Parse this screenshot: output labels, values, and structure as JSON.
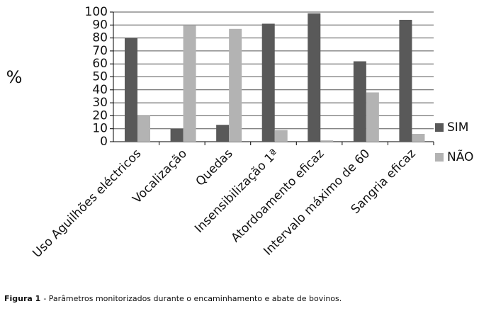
{
  "chart_data": {
    "type": "bar",
    "y_label": "%",
    "categories": [
      "Uso Aguilhões eléctricos",
      "Vocalização",
      "Quedas",
      "Insensibilização 1ª",
      "Atordoamento eficaz",
      "Intervalo máximo de 60",
      "Sangria eficaz"
    ],
    "series": [
      {
        "name": "SIM",
        "color": "#595959",
        "values": [
          80,
          10,
          13,
          91,
          99,
          62,
          94
        ]
      },
      {
        "name": "NÃO",
        "color": "#b3b3b3",
        "values": [
          20,
          90,
          87,
          9,
          1,
          38,
          6
        ]
      }
    ],
    "ylim": [
      0,
      100
    ],
    "yticks": [
      0,
      10,
      20,
      30,
      40,
      50,
      60,
      70,
      80,
      90,
      100
    ],
    "grid": true,
    "legend": "right"
  },
  "caption": {
    "label": "Figura 1",
    "text": "- Parâmetros monitorizados durante o encaminhamento e abate de bovinos."
  }
}
